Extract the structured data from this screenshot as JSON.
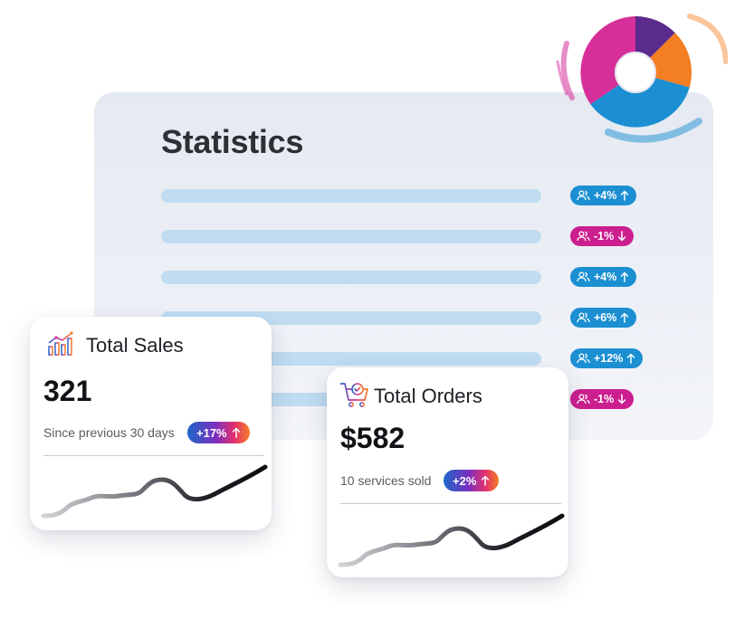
{
  "statistics": {
    "title": "Statistics",
    "rows": [
      {
        "change": "+4%",
        "direction": "up"
      },
      {
        "change": "-1%",
        "direction": "down"
      },
      {
        "change": "+4%",
        "direction": "up"
      },
      {
        "change": "+6%",
        "direction": "up"
      },
      {
        "change": "+12%",
        "direction": "up"
      },
      {
        "change": "-1%",
        "direction": "down"
      }
    ]
  },
  "total_sales": {
    "title": "Total Sales",
    "value": "321",
    "caption": "Since previous 30 days",
    "trend": "+17%",
    "icon": "bar-chart-icon"
  },
  "total_orders": {
    "title": "Total Orders",
    "value": "$582",
    "caption": "10 services sold",
    "trend": "+2%",
    "icon": "shopping-cart-icon"
  },
  "colors": {
    "up_badge": "#1b8fd2",
    "down_badge": "#cc1f8f",
    "bar": "#bfdcf1",
    "donut": [
      "#d62f9a",
      "#5a2a8c",
      "#f47e22",
      "#1b8fd2"
    ]
  }
}
